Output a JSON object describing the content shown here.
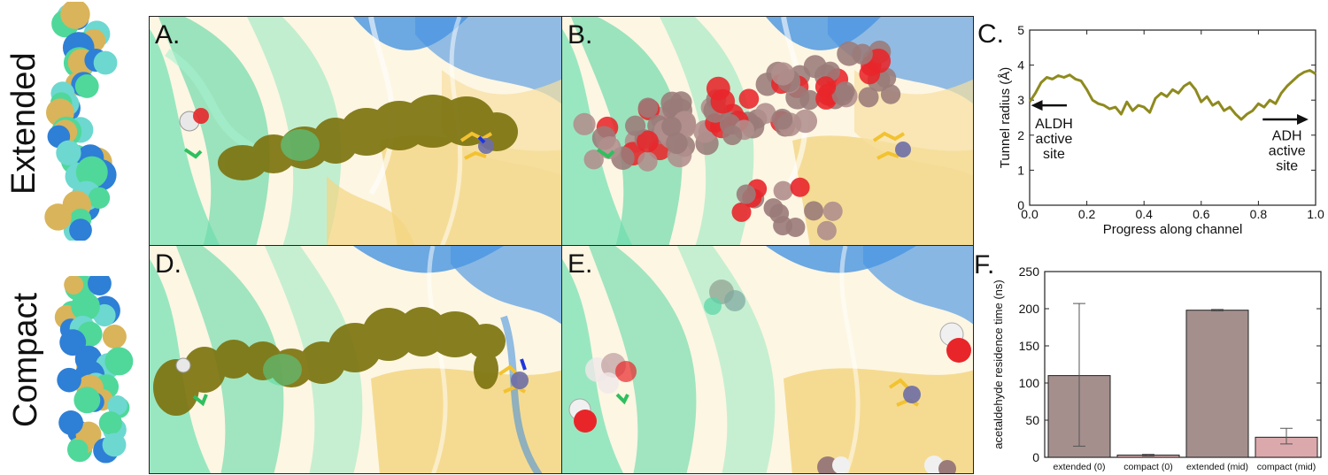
{
  "rows": [
    {
      "label": "Extended"
    },
    {
      "label": "Compact"
    }
  ],
  "panels": [
    {
      "letter": "A."
    },
    {
      "letter": "B."
    },
    {
      "letter": "D."
    },
    {
      "letter": "E."
    }
  ],
  "colors": {
    "tunnel": "#7d7410",
    "aldh_green": "#4fd89a",
    "adh_blue": "#2e7fd6",
    "adh_yellow": "#f2d27a",
    "mauve": "#9a7b79",
    "oxygen_red": "#e8262a",
    "line_olive": "#8e8a1e",
    "bar_dark": "#a48f8d",
    "bar_light": "#dba9ac"
  },
  "chart_data": [
    {
      "panel_letter": "C.",
      "type": "line",
      "xlabel": "Progress along channel",
      "ylabel": "Tunnel radius (Å)",
      "xlim": [
        0,
        1.0
      ],
      "ylim": [
        0,
        5
      ],
      "xticks": [
        "0.0",
        "0.2",
        "0.4",
        "0.6",
        "0.8",
        "1.0"
      ],
      "yticks": [
        "0",
        "1",
        "2",
        "3",
        "4",
        "5"
      ],
      "series": [
        {
          "x": [
            0.0,
            0.02,
            0.04,
            0.06,
            0.08,
            0.1,
            0.12,
            0.14,
            0.16,
            0.18,
            0.2,
            0.22,
            0.24,
            0.26,
            0.28,
            0.3,
            0.32,
            0.34,
            0.36,
            0.38,
            0.4,
            0.42,
            0.44,
            0.46,
            0.48,
            0.5,
            0.52,
            0.54,
            0.56,
            0.58,
            0.6,
            0.62,
            0.64,
            0.66,
            0.68,
            0.7,
            0.72,
            0.74,
            0.76,
            0.78,
            0.8,
            0.82,
            0.84,
            0.86,
            0.88,
            0.9,
            0.92,
            0.94,
            0.96,
            0.98,
            1.0
          ],
          "y": [
            2.95,
            3.2,
            3.5,
            3.65,
            3.6,
            3.7,
            3.65,
            3.72,
            3.6,
            3.55,
            3.3,
            3.0,
            2.9,
            2.85,
            2.75,
            2.8,
            2.6,
            2.95,
            2.7,
            2.85,
            2.8,
            2.65,
            3.05,
            3.2,
            3.1,
            3.3,
            3.2,
            3.4,
            3.5,
            3.3,
            2.95,
            3.1,
            2.85,
            2.95,
            2.7,
            2.8,
            2.6,
            2.45,
            2.6,
            2.7,
            2.9,
            2.8,
            3.0,
            2.9,
            3.2,
            3.4,
            3.55,
            3.7,
            3.8,
            3.85,
            3.75
          ]
        }
      ],
      "annotations": [
        {
          "lines": [
            "ALDH",
            "active",
            "site"
          ],
          "arrow": "left"
        },
        {
          "lines": [
            "ADH",
            "active",
            "site"
          ],
          "arrow": "right"
        }
      ]
    },
    {
      "panel_letter": "F.",
      "type": "bar",
      "ylabel": "acetaldehyde residence time (ns)",
      "ylim": [
        0,
        250
      ],
      "yticks": [
        "0",
        "50",
        "100",
        "150",
        "200",
        "250"
      ],
      "categories": [
        "extended (0)",
        "compact (0)",
        "extended (mid)",
        "compact (mid)"
      ],
      "values": [
        110,
        3,
        198,
        27
      ],
      "errors": [
        [
          15,
          207
        ],
        [
          2,
          4
        ],
        [
          197,
          199
        ],
        [
          18,
          39
        ]
      ],
      "bar_colors": [
        "#a48f8d",
        "#dba9ac",
        "#a48f8d",
        "#dba9ac"
      ]
    }
  ]
}
